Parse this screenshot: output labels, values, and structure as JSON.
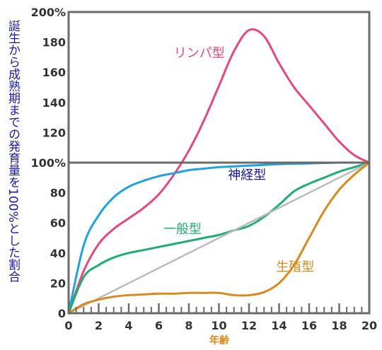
{
  "chart_data": {
    "type": "line",
    "ylabel": "誕生から成熟期までの発育量を100%とした割合",
    "xlabel": "年齢",
    "x_ticks": [
      "0",
      "2",
      "4",
      "6",
      "8",
      "10",
      "12",
      "14",
      "16",
      "18",
      "20"
    ],
    "y_ticks": [
      "0",
      "20",
      "40",
      "60",
      "80",
      "100%",
      "120",
      "140",
      "160",
      "180",
      "200%"
    ],
    "xlim": [
      0,
      20
    ],
    "ylim": [
      0,
      200
    ],
    "grid": false,
    "series": [
      {
        "name": "リンパ型",
        "color": "#e8467c",
        "x": [
          0,
          1,
          2,
          3,
          4,
          5,
          6,
          7,
          8,
          9,
          10,
          11,
          12,
          13,
          14,
          15,
          16,
          17,
          18,
          19,
          20
        ],
        "y": [
          0,
          28,
          46,
          56,
          63,
          70,
          79,
          92,
          108,
          128,
          151,
          174,
          188,
          184,
          166,
          150,
          138,
          126,
          114,
          105,
          100
        ]
      },
      {
        "name": "神経型",
        "color": "#1ea2e0",
        "x": [
          0,
          1,
          2,
          3,
          4,
          5,
          6,
          7,
          8,
          9,
          10,
          12,
          14,
          16,
          18,
          20
        ],
        "y": [
          0,
          45,
          65,
          77,
          84,
          88,
          91,
          93,
          95,
          96,
          97,
          98,
          99,
          99.5,
          100,
          100
        ]
      },
      {
        "name": "一般型",
        "color": "#1eae74",
        "x": [
          0,
          1,
          2,
          3,
          4,
          5,
          6,
          7,
          8,
          9,
          10,
          11,
          12,
          13,
          14,
          15,
          16,
          17,
          18,
          19,
          20
        ],
        "y": [
          0,
          24,
          32,
          37,
          40,
          42,
          44,
          46,
          48,
          50,
          52,
          55,
          58,
          64,
          72,
          81,
          86,
          90,
          94,
          97,
          100
        ]
      },
      {
        "name": "",
        "color": "#bbbbbb",
        "x": [
          0,
          20
        ],
        "y": [
          0,
          100
        ]
      },
      {
        "name": "生殖型",
        "color": "#d98a1a",
        "x": [
          0,
          1,
          2,
          3,
          4,
          5,
          6,
          7,
          8,
          9,
          10,
          11,
          12,
          13,
          14,
          15,
          16,
          17,
          18,
          19,
          20
        ],
        "y": [
          0,
          6,
          9,
          11,
          12,
          12.5,
          13,
          13,
          13.5,
          13.5,
          13.5,
          12,
          12,
          14,
          20,
          32,
          50,
          68,
          82,
          92,
          100
        ]
      }
    ],
    "annotations": [
      {
        "text": "リンパ型",
        "color": "#e8467c",
        "x": 7.0,
        "y": 170
      },
      {
        "text": "神経型",
        "color": "#1a1aa8",
        "x": 10.6,
        "y": 89
      },
      {
        "text": "一般型",
        "color": "#1eae74",
        "x": 6.3,
        "y": 53
      },
      {
        "text": "生殖型",
        "color": "#d98a1a",
        "x": 13.8,
        "y": 28
      }
    ],
    "reference_line_y": 100
  }
}
